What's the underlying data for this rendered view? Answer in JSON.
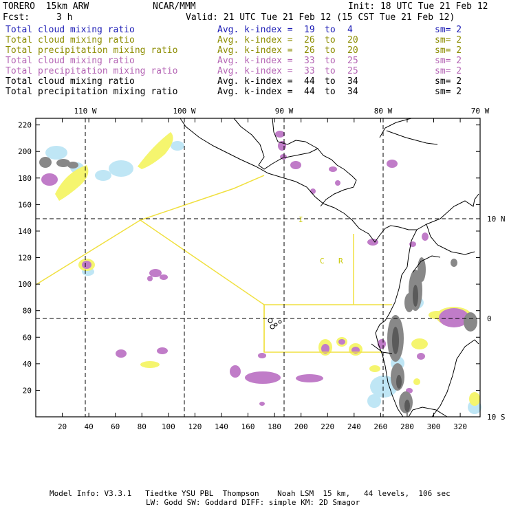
{
  "header": {
    "model": "TORERO  15km ARW",
    "center": "NCAR/MMM",
    "init": "Init: 18 UTC Tue 21 Feb 12",
    "fcst_label": "Fcst:",
    "fcst_value": "3 h",
    "valid": "Valid: 21 UTC Tue 21 Feb 12 (15 CST Tue 21 Feb 12)"
  },
  "legend": [
    {
      "field": "Total cloud mixing ratio",
      "kindex": "Avg. k-index = ",
      "from": "19",
      "to_word": "to",
      "to": "4",
      "sm": "sm= 2",
      "color": "#1a1ab4"
    },
    {
      "field": "Total cloud mixing ratio",
      "kindex": "Avg. k-index = ",
      "from": "26",
      "to_word": "to",
      "to": "20",
      "sm": "sm= 2",
      "color": "#8c8c00"
    },
    {
      "field": "Total precipitation mixing ratio",
      "kindex": "Avg. k-index = ",
      "from": "26",
      "to_word": "to",
      "to": "20",
      "sm": "sm= 2",
      "color": "#8c8c00"
    },
    {
      "field": "Total cloud mixing ratio",
      "kindex": "Avg. k-index = ",
      "from": "33",
      "to_word": "to",
      "to": "25",
      "sm": "sm= 2",
      "color": "#b464b4"
    },
    {
      "field": "Total precipitation mixing ratio",
      "kindex": "Avg. k-index = ",
      "from": "33",
      "to_word": "to",
      "to": "25",
      "sm": "sm= 2",
      "color": "#b464b4"
    },
    {
      "field": "Total cloud mixing ratio",
      "kindex": "Avg. k-index = ",
      "from": "44",
      "to_word": "to",
      "to": "34",
      "sm": "sm= 2",
      "color": "#000000"
    },
    {
      "field": "Total precipitation mixing ratio",
      "kindex": "Avg. k-index = ",
      "from": "44",
      "to_word": "to",
      "to": "34",
      "sm": "sm= 2",
      "color": "#000000"
    }
  ],
  "map": {
    "x_ticks": [
      "20",
      "40",
      "60",
      "80",
      "100",
      "120",
      "140",
      "160",
      "180",
      "200",
      "220",
      "240",
      "260",
      "280",
      "300",
      "320"
    ],
    "y_ticks": [
      "20",
      "40",
      "60",
      "80",
      "100",
      "120",
      "140",
      "160",
      "180",
      "200",
      "220"
    ],
    "lon_labels": [
      "110 W",
      "100 W",
      "90 W",
      "80 W",
      "70 W"
    ],
    "lat_labels": [
      "10 N",
      "0",
      "10 S"
    ],
    "region_letters": [
      "I",
      "C",
      "R"
    ]
  },
  "footer": {
    "line1": "Model Info: V3.3.1   Tiedtke YSU PBL  Thompson    Noah LSM  15 km,   44 levels,  106 sec",
    "line2": "LW: Godd SW: Goddard DIFF: simple KM: 2D Smagor"
  }
}
